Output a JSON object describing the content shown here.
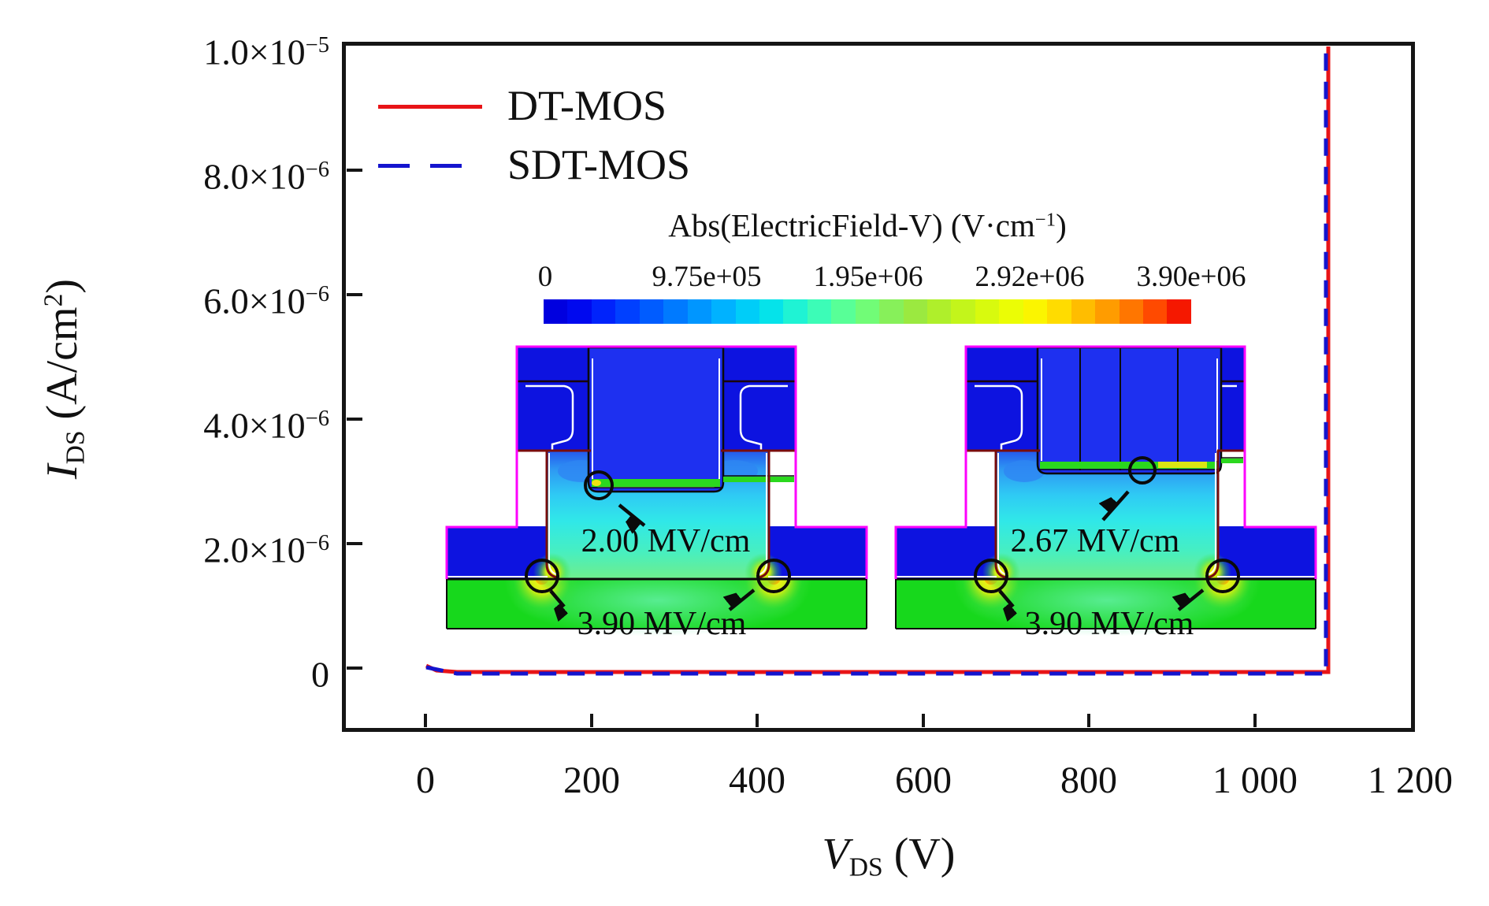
{
  "legend": {
    "items": [
      {
        "label": "DT-MOS",
        "color": "#E81417",
        "style": "solid"
      },
      {
        "label": "SDT-MOS",
        "color": "#1414CE",
        "style": "dashed"
      }
    ]
  },
  "axes": {
    "x": {
      "label_var": "V",
      "label_sub": "DS",
      "label_unit": " (V)",
      "ticks": [
        "0",
        "200",
        "400",
        "600",
        "800",
        "1 000",
        "1 200"
      ]
    },
    "y": {
      "label_var": "I",
      "label_sub": "DS",
      "label_unit_pre": " (A/cm",
      "label_unit_sup": "2",
      "label_unit_post": ")",
      "ticks": [
        {
          "base": "1.0×10",
          "exp": "−5"
        },
        {
          "base": "8.0×10",
          "exp": "−6"
        },
        {
          "base": "6.0×10",
          "exp": "−6"
        },
        {
          "base": "4.0×10",
          "exp": "−6"
        },
        {
          "base": "2.0×10",
          "exp": "−6"
        },
        {
          "base": "0",
          "exp": ""
        }
      ]
    }
  },
  "colorbar": {
    "title_pre": "Abs(ElectricField-V) (V·cm",
    "title_sup": "−1",
    "title_post": ")",
    "ticks": [
      "0",
      "9.75e+05",
      "1.95e+06",
      "2.92e+06",
      "3.90e+06"
    ],
    "colors": [
      "#0000DF",
      "#0009EF",
      "#0023FB",
      "#0040FF",
      "#005CFF",
      "#007AFF",
      "#0096FF",
      "#00B2FF",
      "#00CDF8",
      "#05E3EA",
      "#1FF3D4",
      "#3CFCB7",
      "#58FF97",
      "#71FC77",
      "#87F05A",
      "#9BE940",
      "#AFEF2B",
      "#C3F51B",
      "#D8FA0E",
      "#EBFD05",
      "#FBF500",
      "#FFDC00",
      "#FFBD00",
      "#FF9C00",
      "#FF7600",
      "#FF4A00",
      "#F51800"
    ]
  },
  "insets": {
    "left": {
      "name": "DT-MOS cross-section",
      "annotations": [
        "2.00 MV/cm",
        "3.90 MV/cm"
      ]
    },
    "right": {
      "name": "SDT-MOS cross-section",
      "annotations": [
        "2.67 MV/cm",
        "3.90 MV/cm"
      ]
    }
  },
  "chart_data": {
    "type": "line",
    "title": "",
    "xlabel": "V_DS (V)",
    "ylabel": "I_DS (A/cm^2)",
    "xlim": [
      0,
      1200
    ],
    "ylim": [
      0,
      1e-05
    ],
    "x_ticks": [
      0,
      200,
      400,
      600,
      800,
      1000,
      1200
    ],
    "y_ticks": [
      0,
      2e-06,
      4e-06,
      6e-06,
      8e-06,
      1e-05
    ],
    "grid": false,
    "legend_position": "top-left",
    "series": [
      {
        "name": "DT-MOS",
        "color": "#E81417",
        "style": "solid",
        "points": [
          [
            0,
            0
          ],
          [
            1085,
            0
          ],
          [
            1088,
            1e-05
          ]
        ]
      },
      {
        "name": "SDT-MOS",
        "color": "#1414CE",
        "style": "dashed",
        "points": [
          [
            0,
            0
          ],
          [
            1083,
            0
          ],
          [
            1086,
            1e-05
          ]
        ]
      }
    ],
    "breakdown_voltage_V": {
      "DT-MOS": 1088,
      "SDT-MOS": 1086
    },
    "inset_colorbar": {
      "title": "Abs(ElectricField-V) (V·cm−1)",
      "ticks": [
        0,
        975000,
        1950000,
        2920000,
        3900000
      ]
    },
    "annotations": [
      "2.00 MV/cm",
      "3.90 MV/cm",
      "2.67 MV/cm",
      "3.90 MV/cm"
    ]
  }
}
